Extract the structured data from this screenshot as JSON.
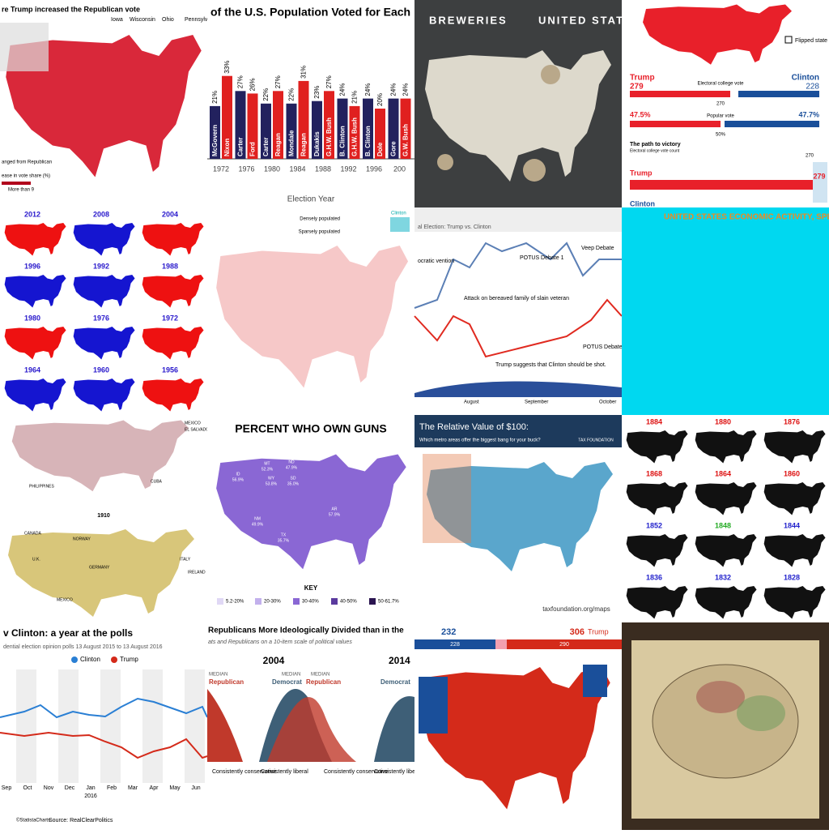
{
  "t1": {
    "title": "re Trump increased the Republican vote",
    "states": [
      "Iowa",
      "Wisconsin",
      "Ohio",
      "Pennsylva"
    ],
    "note": "anged from Republican",
    "legend_title": "ease in vote share (%)",
    "legend_max": "More than 9"
  },
  "t2": {
    "title": "of the U.S. Population Voted for Each",
    "x_label": "Election Year",
    "years": [
      "1972",
      "1976",
      "1980",
      "1984",
      "1988",
      "1992",
      "1996",
      "200"
    ],
    "candidates": [
      [
        "McGovern",
        "Nixon"
      ],
      [
        "Carter",
        "Ford"
      ],
      [
        "Carter",
        "Reagan"
      ],
      [
        "Mondale",
        "Reagan"
      ],
      [
        "Dukakis",
        "G.H.W. Bush"
      ],
      [
        "B. Clinton",
        "G.H.W. Bush"
      ],
      [
        "B. Clinton",
        "Dole"
      ],
      [
        "Gore",
        "G.W. Bush"
      ]
    ],
    "values": [
      [
        21,
        33
      ],
      [
        27,
        26
      ],
      [
        22,
        27
      ],
      [
        22,
        31
      ],
      [
        23,
        27
      ],
      [
        24,
        21
      ],
      [
        24,
        20
      ],
      [
        24,
        24
      ]
    ],
    "value_labels": [
      [
        "21%",
        "33%"
      ],
      [
        "27%",
        "26%"
      ],
      [
        "22%",
        "27%"
      ],
      [
        "22%",
        "31%"
      ],
      [
        "23%",
        "27%"
      ],
      [
        "24%",
        "21%"
      ],
      [
        "24%",
        "20%"
      ],
      [
        "24%",
        "24%"
      ]
    ]
  },
  "t3": {
    "title_left": "BREWERIES",
    "title_right": "UNITED STATES"
  },
  "t4": {
    "flipped": "Flipped state",
    "trump": "Trump",
    "trump_ev": "279",
    "clinton": "Clinton",
    "clinton_ev": "228",
    "ev_label": "Electoral college vote",
    "ev_needed": "270",
    "trump_pop": "47.5%",
    "pop_label": "Popular vote",
    "clinton_pop": "47.7%",
    "half": "50%",
    "path_title": "The path to victory",
    "path_sub": "Electoral college vote count",
    "path_trump": "Trump",
    "path_ev": "279",
    "path_clinton": "Clinton"
  },
  "t5": {
    "years": [
      "2012",
      "2008",
      "2004",
      "1996",
      "1992",
      "1988",
      "1980",
      "1976",
      "1972",
      "1964",
      "1960",
      "1956"
    ]
  },
  "t6": {
    "dense": "Densely populated",
    "sparse": "Sparsely populated",
    "clinton": "Clinton"
  },
  "t7": {
    "title": "al Election: Trump vs. Clinton",
    "convention": "ocratic vention",
    "attack": "Attack on bereaved family of slain veteran",
    "debate1": "POTUS Debate 1",
    "veep": "Veep Debate",
    "debate2": "POTUS Debate 2",
    "shot": "Trump suggests that Clinton should be shot.",
    "months": [
      "August",
      "September",
      "October"
    ]
  },
  "t8": {
    "title": "UNITED STATES ECONOMIC ACTIVITY, SPLIT"
  },
  "t9": {
    "labels": [
      "MEXICO",
      "EL SALVADOR",
      "PHILIPPINES",
      "CUBA"
    ],
    "year": "1910",
    "map_labels": [
      "CANADA",
      "NORWAY",
      "GERMANY",
      "U.K.",
      "MEXICO",
      "IRELAND",
      "ITALY"
    ]
  },
  "t10": {
    "title": "PERCENT WHO OWN GUNS",
    "key": "KEY",
    "legend": [
      "5.2-20%",
      "20-30%",
      "30-40%",
      "40-50%",
      "50-61.7%"
    ],
    "states": [
      [
        "MT",
        "52.3%"
      ],
      [
        "ND",
        "47.9%"
      ],
      [
        "WY",
        "53.8%"
      ],
      [
        "SD",
        "35.0%"
      ],
      [
        "ID",
        "56.9%"
      ],
      [
        "NM",
        "49.9%"
      ],
      [
        "TX",
        "35.7%"
      ],
      [
        "AR",
        "57.9%"
      ],
      [
        "AK",
        "61.7%"
      ]
    ]
  },
  "t11": {
    "title": "The Relative Value of $100:",
    "subtitle": "Which metro areas offer the biggest bang for your buck?",
    "brand": "TAX FOUNDATION",
    "url": "taxfoundation.org/maps"
  },
  "t12": {
    "years": [
      "1884",
      "1880",
      "1876",
      "1868",
      "1864",
      "1860",
      "1852",
      "1848",
      "1844",
      "1836",
      "1832",
      "1828"
    ]
  },
  "t13": {
    "title": "v Clinton: a year at the polls",
    "subtitle": "dential election opinion polls 13 August 2015 to 13 August 2016",
    "legend": [
      "Clinton",
      "Trump"
    ],
    "months": [
      "Sep",
      "Oct",
      "Nov",
      "Dec",
      "Jan",
      "Feb",
      "Mar",
      "Apr",
      "May",
      "Jun"
    ],
    "year": "2016",
    "brand": "©StatistaCharts",
    "source": "Source: RealClearPolitics"
  },
  "t14": {
    "title": "Republicans More Ideologically Divided than in the",
    "subtitle": "ats and Republicans on a 10-item scale of political values",
    "year1": "2004",
    "year2": "2014",
    "median": "MEDIAN",
    "republican": "Republican",
    "democrat": "Democrat",
    "liberal": "Consistently liberal",
    "conservative": "Consistently conservative"
  },
  "t15": {
    "clinton_ev": "232",
    "trump_ev": "306",
    "trump": "Trump",
    "clinton_bar": "228",
    "trump_bar": "290"
  }
}
